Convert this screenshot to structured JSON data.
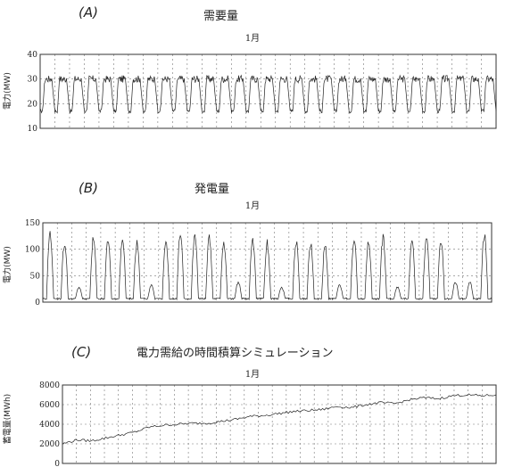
{
  "chart_data": [
    {
      "type": "line",
      "panel": "(A)",
      "title": "需要量",
      "subtitle": "1月",
      "ylabel": "電力(MW)",
      "ylim": [
        10,
        40
      ],
      "yticks": [
        10,
        20,
        30,
        40
      ],
      "grid": true,
      "pattern": "demand",
      "cycles": 31,
      "base": 17,
      "peak": 31,
      "series": [
        {
          "values": [
            17,
            24,
            30,
            31,
            30,
            31,
            29,
            30,
            26,
            20,
            17
          ]
        }
      ]
    },
    {
      "type": "line",
      "panel": "(B)",
      "title": "発電量",
      "subtitle": "1月",
      "ylabel": "電力(MW)",
      "ylim": [
        0,
        150
      ],
      "yticks": [
        0,
        50,
        100,
        150
      ],
      "grid": true,
      "pattern": "generation",
      "cycles": 31,
      "base": 5,
      "peaks": [
        140,
        120,
        30,
        130,
        125,
        130,
        120,
        35,
        130,
        140,
        135,
        130,
        120,
        40,
        130,
        120,
        30,
        125,
        120,
        115,
        35,
        130,
        125,
        130,
        30,
        120,
        135,
        125,
        40,
        40,
        140
      ],
      "series": [
        {
          "values": [
            5,
            8,
            40,
            110,
            140,
            120,
            60,
            10,
            5
          ]
        }
      ]
    },
    {
      "type": "line",
      "panel": "(C)",
      "title": "電力需給の時間積算シミュレーション",
      "subtitle": "1月",
      "ylabel": "蓄電量(MWh)",
      "ylim": [
        0,
        8000
      ],
      "yticks": [
        0,
        2000,
        4000,
        6000,
        8000
      ],
      "grid": true,
      "pattern": "cumulative",
      "series": [
        {
          "values": [
            2000,
            2400,
            2300,
            2600,
            2900,
            3200,
            3700,
            3900,
            4000,
            4100,
            4100,
            4300,
            4500,
            4800,
            4900,
            5100,
            5300,
            5400,
            5500,
            5800,
            5700,
            6000,
            6200,
            6100,
            6500,
            6700,
            6600,
            6900,
            7000,
            6900,
            7000
          ]
        }
      ]
    }
  ]
}
